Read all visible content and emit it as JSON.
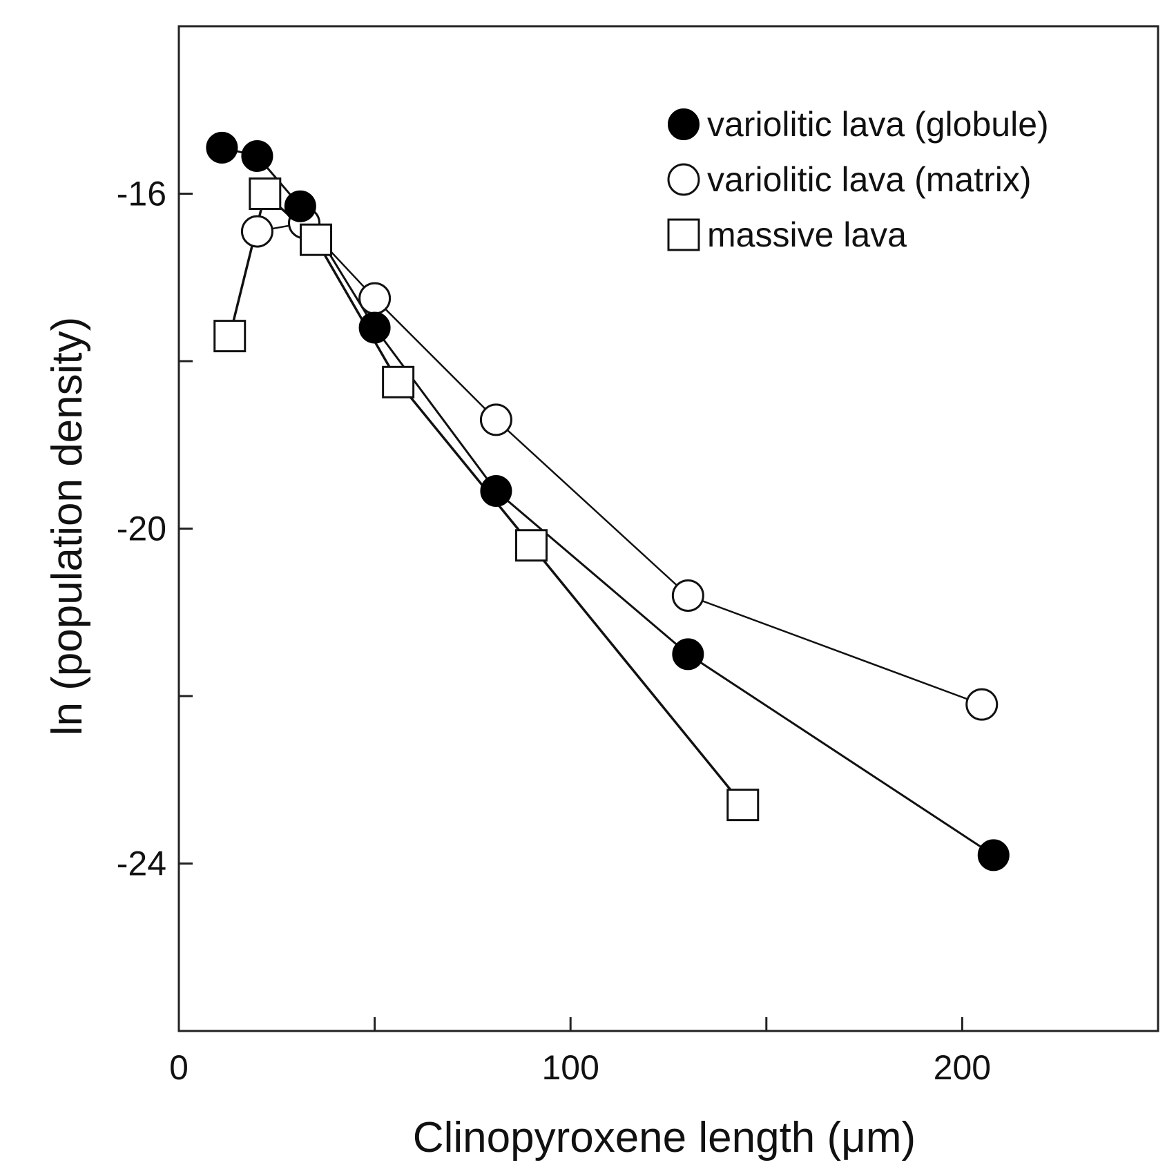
{
  "chart_data": {
    "type": "line",
    "title": "",
    "xlabel": "Clinopyroxene length (μm)",
    "ylabel": "ln (population density)",
    "xlim": [
      0,
      250
    ],
    "ylim": [
      -26,
      -14
    ],
    "x_ticks": [
      0,
      50,
      100,
      150,
      200,
      250
    ],
    "x_tick_labels": [
      "0",
      "",
      "100",
      "",
      "200",
      ""
    ],
    "y_ticks": [
      -26,
      -24,
      -22,
      -20,
      -18,
      -16,
      -14
    ],
    "y_tick_labels": [
      "",
      "-24",
      "",
      "-20",
      "",
      "-16",
      ""
    ],
    "grid": false,
    "legend_position": "top-right",
    "series": [
      {
        "name": "variolitic  lava (globule)",
        "marker": "filled-circle",
        "x": [
          11,
          20,
          31,
          50,
          81,
          130,
          208
        ],
        "y": [
          -15.45,
          -15.55,
          -16.15,
          -17.6,
          -19.55,
          -21.5,
          -23.9
        ]
      },
      {
        "name": "variolitic  lava (matrix)",
        "marker": "open-circle",
        "x": [
          20,
          32,
          50,
          81,
          130,
          205
        ],
        "y": [
          -16.45,
          -16.35,
          -17.25,
          -18.7,
          -20.8,
          -22.1
        ]
      },
      {
        "name": "massive lava",
        "marker": "open-square",
        "x": [
          13,
          22,
          35,
          56,
          90,
          144
        ],
        "y": [
          -17.7,
          -16.0,
          -16.55,
          -18.25,
          -20.2,
          -23.3
        ]
      }
    ]
  },
  "colors": {
    "marker_fill_dark": "#000000",
    "marker_fill_light": "#ffffff",
    "line": "#111111",
    "axis": "#222222"
  }
}
